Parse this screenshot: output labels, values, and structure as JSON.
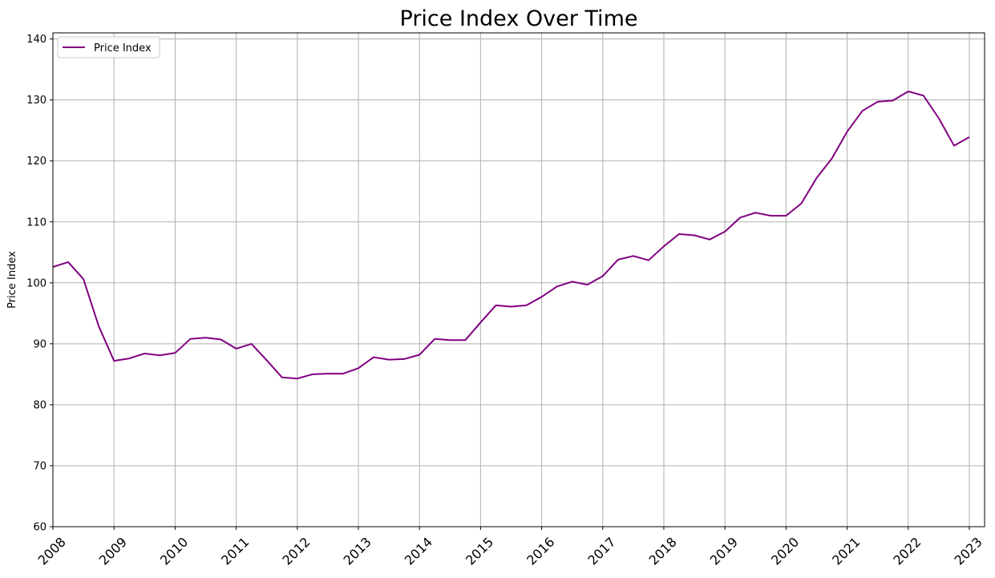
{
  "chart_data": {
    "type": "line",
    "title": "Price Index Over Time",
    "xlabel": "",
    "ylabel": "Price Index",
    "xlim": [
      2008.0,
      2023.25
    ],
    "ylim": [
      60,
      141
    ],
    "y_ticks": [
      60,
      70,
      80,
      90,
      100,
      110,
      120,
      130,
      140
    ],
    "x_ticks": [
      "2008",
      "2009",
      "2010",
      "2011",
      "2012",
      "2013",
      "2014",
      "2015",
      "2016",
      "2017",
      "2018",
      "2019",
      "2020",
      "2021",
      "2022",
      "2023"
    ],
    "x_tick_rotation": 45,
    "grid": true,
    "legend": {
      "position": "upper-left",
      "entries": [
        "Price Index"
      ]
    },
    "series": [
      {
        "name": "Price Index",
        "color": "#800080",
        "x": [
          "2008-01",
          "2008-04",
          "2008-07",
          "2008-10",
          "2009-01",
          "2009-04",
          "2009-07",
          "2009-10",
          "2010-01",
          "2010-04",
          "2010-07",
          "2010-10",
          "2011-01",
          "2011-04",
          "2011-07",
          "2011-10",
          "2012-01",
          "2012-04",
          "2012-07",
          "2012-10",
          "2013-01",
          "2013-04",
          "2013-07",
          "2013-10",
          "2014-01",
          "2014-04",
          "2014-07",
          "2014-10",
          "2015-01",
          "2015-04",
          "2015-07",
          "2015-10",
          "2016-01",
          "2016-04",
          "2016-07",
          "2016-10",
          "2017-01",
          "2017-04",
          "2017-07",
          "2017-10",
          "2018-01",
          "2018-04",
          "2018-07",
          "2018-10",
          "2019-01",
          "2019-04",
          "2019-07",
          "2019-10",
          "2020-01",
          "2020-04",
          "2020-07",
          "2020-10",
          "2021-01",
          "2021-04",
          "2021-07",
          "2021-10",
          "2022-01",
          "2022-04",
          "2022-07",
          "2022-10",
          "2023-01"
        ],
        "values": [
          102.6,
          103.4,
          100.6,
          92.9,
          87.2,
          87.6,
          88.4,
          88.1,
          88.5,
          90.8,
          91.0,
          90.7,
          89.2,
          90.0,
          87.3,
          84.5,
          84.3,
          85.0,
          85.1,
          85.1,
          86.0,
          87.8,
          87.4,
          87.5,
          88.2,
          90.8,
          90.6,
          90.6,
          93.5,
          96.3,
          96.1,
          96.3,
          97.7,
          99.4,
          100.2,
          99.7,
          101.1,
          103.8,
          104.4,
          103.7,
          106.0,
          108.0,
          107.8,
          107.1,
          108.4,
          110.7,
          111.5,
          111.0,
          111.0,
          113.0,
          117.2,
          120.4,
          124.8,
          128.2,
          129.7,
          129.9,
          131.4,
          130.7,
          127.0,
          122.5,
          123.9
        ]
      }
    ]
  }
}
